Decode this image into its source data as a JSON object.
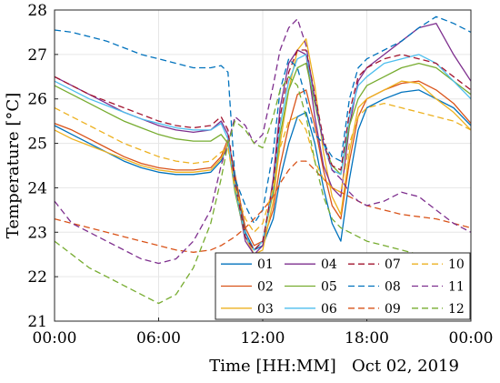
{
  "chart_data": {
    "type": "line",
    "title": "",
    "xlabel": "Time [HH:MM]",
    "xlabel_note": "Oct 02, 2019",
    "ylabel": "Temperature [°C]",
    "xlim": [
      0,
      24
    ],
    "ylim": [
      21,
      28
    ],
    "x_ticks": [
      0,
      6,
      12,
      18,
      24
    ],
    "x_tick_labels": [
      "00:00",
      "06:00",
      "12:00",
      "18:00",
      "00:00"
    ],
    "y_ticks": [
      21,
      22,
      23,
      24,
      25,
      26,
      27,
      28
    ],
    "y_tick_labels": [
      "21",
      "22",
      "23",
      "24",
      "25",
      "26",
      "27",
      "28"
    ],
    "grid": true,
    "legend_position": "bottom-right",
    "legend_columns": 4,
    "x": [
      0,
      1,
      2,
      3,
      4,
      5,
      6,
      7,
      8,
      9,
      9.6,
      10,
      10.4,
      11,
      11.5,
      12,
      12.6,
      13,
      13.5,
      14,
      14.5,
      15,
      15.5,
      16,
      16.5,
      17,
      17.5,
      18,
      19,
      20,
      21,
      22,
      23,
      24
    ],
    "series": [
      {
        "name": "01",
        "color": "#0072BD",
        "dash": "solid",
        "values": [
          25.4,
          25.2,
          25.0,
          24.8,
          24.6,
          24.45,
          24.35,
          24.3,
          24.3,
          24.35,
          24.6,
          25.0,
          24.2,
          23.0,
          22.6,
          22.7,
          23.3,
          24.2,
          25.0,
          25.6,
          25.7,
          25.0,
          24.0,
          23.2,
          22.8,
          24.2,
          25.3,
          25.8,
          26.0,
          26.15,
          26.2,
          26.0,
          25.8,
          25.4
        ]
      },
      {
        "name": "02",
        "color": "#D95319",
        "dash": "solid",
        "values": [
          25.45,
          25.3,
          25.1,
          24.9,
          24.7,
          24.55,
          24.45,
          24.4,
          24.4,
          24.45,
          24.7,
          25.1,
          24.3,
          23.1,
          22.7,
          22.8,
          23.5,
          24.5,
          25.4,
          26.1,
          26.2,
          25.4,
          24.4,
          23.6,
          23.3,
          24.6,
          25.6,
          26.0,
          26.2,
          26.35,
          26.4,
          26.2,
          25.9,
          25.45
        ]
      },
      {
        "name": "03",
        "color": "#EDB120",
        "dash": "solid",
        "values": [
          25.3,
          25.1,
          24.95,
          24.8,
          24.65,
          24.5,
          24.4,
          24.35,
          24.35,
          24.4,
          24.65,
          25.0,
          24.1,
          22.9,
          22.5,
          22.6,
          23.7,
          25.0,
          26.2,
          27.1,
          27.35,
          26.3,
          24.8,
          23.8,
          23.4,
          24.8,
          25.8,
          26.0,
          26.2,
          26.4,
          26.35,
          26.0,
          25.7,
          25.3
        ]
      },
      {
        "name": "04",
        "color": "#7E2F8E",
        "dash": "solid",
        "values": [
          26.5,
          26.3,
          26.1,
          25.9,
          25.7,
          25.55,
          25.4,
          25.3,
          25.25,
          25.3,
          25.5,
          25.2,
          24.0,
          22.8,
          22.5,
          22.7,
          24.2,
          25.8,
          26.8,
          27.1,
          27.0,
          25.6,
          24.5,
          24.0,
          23.8,
          25.4,
          26.4,
          26.7,
          27.0,
          27.3,
          27.6,
          27.7,
          27.0,
          26.4
        ]
      },
      {
        "name": "05",
        "color": "#77AC30",
        "dash": "solid",
        "values": [
          26.3,
          26.1,
          25.9,
          25.7,
          25.5,
          25.35,
          25.2,
          25.1,
          25.05,
          25.05,
          25.2,
          25.0,
          23.9,
          22.9,
          22.6,
          22.8,
          23.9,
          25.2,
          26.2,
          26.7,
          26.8,
          25.9,
          25.0,
          24.5,
          24.3,
          25.4,
          26.0,
          26.3,
          26.5,
          26.7,
          26.8,
          26.7,
          26.4,
          26.1
        ]
      },
      {
        "name": "06",
        "color": "#4DBEEE",
        "dash": "solid",
        "values": [
          26.4,
          26.2,
          26.0,
          25.85,
          25.7,
          25.55,
          25.45,
          25.35,
          25.3,
          25.3,
          25.45,
          25.1,
          24.0,
          22.9,
          22.6,
          22.8,
          24.0,
          25.4,
          26.4,
          26.9,
          27.0,
          26.0,
          25.0,
          24.4,
          24.3,
          25.6,
          26.3,
          26.5,
          26.8,
          26.9,
          27.0,
          26.8,
          26.4,
          26.0
        ]
      },
      {
        "name": "07",
        "color": "#A2142F",
        "dash": "dash",
        "values": [
          26.5,
          26.3,
          26.1,
          25.95,
          25.8,
          25.65,
          25.5,
          25.4,
          25.35,
          25.4,
          25.6,
          25.3,
          24.1,
          22.9,
          22.6,
          22.8,
          24.1,
          25.6,
          26.6,
          27.1,
          27.1,
          26.1,
          25.1,
          24.5,
          24.4,
          25.7,
          26.5,
          26.7,
          26.9,
          27.0,
          26.9,
          26.8,
          26.5,
          26.2
        ]
      },
      {
        "name": "08",
        "color": "#0072BD",
        "dash": "dash",
        "values": [
          27.55,
          27.5,
          27.4,
          27.3,
          27.15,
          27.0,
          26.9,
          26.8,
          26.7,
          26.7,
          26.75,
          26.6,
          24.2,
          23.6,
          23.2,
          23.5,
          24.8,
          26.2,
          26.9,
          26.7,
          26.0,
          25.2,
          25.0,
          24.7,
          24.6,
          26.0,
          26.7,
          26.9,
          27.1,
          27.3,
          27.6,
          27.85,
          27.7,
          27.5
        ]
      },
      {
        "name": "09",
        "color": "#D95319",
        "dash": "dash",
        "values": [
          23.3,
          23.2,
          23.1,
          23.0,
          22.9,
          22.8,
          22.7,
          22.6,
          22.55,
          22.6,
          22.7,
          22.8,
          22.9,
          23.1,
          23.3,
          23.5,
          23.8,
          24.1,
          24.4,
          24.6,
          24.6,
          24.4,
          24.2,
          24.0,
          23.9,
          23.8,
          23.7,
          23.6,
          23.5,
          23.4,
          23.35,
          23.3,
          23.2,
          23.1
        ]
      },
      {
        "name": "10",
        "color": "#EDB120",
        "dash": "dash",
        "values": [
          25.8,
          25.6,
          25.4,
          25.2,
          25.0,
          24.85,
          24.7,
          24.6,
          24.55,
          24.6,
          24.8,
          24.9,
          24.0,
          23.3,
          23.0,
          23.2,
          24.0,
          24.9,
          25.5,
          25.6,
          25.3,
          24.6,
          24.2,
          24.0,
          23.9,
          25.0,
          25.6,
          25.8,
          25.9,
          25.8,
          25.7,
          25.6,
          25.5,
          25.3
        ]
      },
      {
        "name": "11",
        "color": "#7E2F8E",
        "dash": "dash",
        "values": [
          23.7,
          23.2,
          23.0,
          22.8,
          22.6,
          22.4,
          22.3,
          22.4,
          22.8,
          23.5,
          24.5,
          25.0,
          25.6,
          25.4,
          25.0,
          25.2,
          26.3,
          27.1,
          27.6,
          27.8,
          27.2,
          26.0,
          25.0,
          24.4,
          24.2,
          23.9,
          23.7,
          23.6,
          23.7,
          23.9,
          23.8,
          23.5,
          23.2,
          23.0
        ]
      },
      {
        "name": "12",
        "color": "#77AC30",
        "dash": "dash",
        "values": [
          22.8,
          22.5,
          22.2,
          22.0,
          21.8,
          21.6,
          21.4,
          21.6,
          22.2,
          23.2,
          24.2,
          25.0,
          25.5,
          25.3,
          25.0,
          24.9,
          25.6,
          26.2,
          26.5,
          26.3,
          25.6,
          24.6,
          23.8,
          23.3,
          23.1,
          23.0,
          22.9,
          22.8,
          22.7,
          22.6,
          22.5,
          22.4,
          22.3,
          22.2
        ]
      }
    ]
  }
}
